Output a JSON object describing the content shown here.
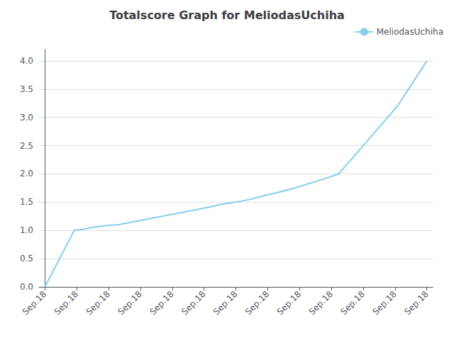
{
  "chart_data": {
    "type": "line",
    "title": "Totalscore Graph for MeliodasUchiha",
    "x": [
      0,
      0.5,
      1.0,
      1.3,
      1.6,
      2.0,
      2.5,
      3.0,
      3.5,
      4.0,
      4.5,
      5.0,
      5.5,
      6.0,
      6.5,
      7.0,
      7.5,
      8.0,
      8.5,
      9.0,
      9.5,
      10.0,
      10.5,
      11.0,
      11.5,
      12.0,
      12.5,
      13.0
    ],
    "series": [
      {
        "name": "MeliodasUchiha",
        "color": "#87CEEB",
        "values": [
          0.0,
          0.5,
          1.0,
          1.02,
          1.05,
          1.08,
          1.1,
          1.15,
          1.2,
          1.25,
          1.3,
          1.35,
          1.4,
          1.46,
          1.5,
          1.55,
          1.62,
          1.68,
          1.75,
          1.83,
          1.91,
          2.0,
          2.3,
          2.6,
          2.9,
          3.2,
          3.6,
          4.0
        ]
      }
    ],
    "xlim": [
      -0.2,
      13.2
    ],
    "xticks": [
      {
        "value": 0,
        "label": "Sep.18"
      },
      {
        "value": 1.0833333333333333,
        "label": "Sep.18"
      },
      {
        "value": 2.1666666666666665,
        "label": "Sep.18"
      },
      {
        "value": 3.25,
        "label": "Sep.18"
      },
      {
        "value": 4.333333333333333,
        "label": "Sep.18"
      },
      {
        "value": 5.416666666666667,
        "label": "Sep.18"
      },
      {
        "value": 6.5,
        "label": "Sep.18"
      },
      {
        "value": 7.583333333333333,
        "label": "Sep.18"
      },
      {
        "value": 8.666666666666666,
        "label": "Sep.18"
      },
      {
        "value": 9.75,
        "label": "Sep.18"
      },
      {
        "value": 10.833333333333334,
        "label": "Sep.18"
      },
      {
        "value": 11.916666666666666,
        "label": "Sep.18"
      },
      {
        "value": 13,
        "label": "Sep.18"
      }
    ],
    "ylim": [
      0.0,
      4.2
    ],
    "yticks": [
      {
        "value": 0.0,
        "label": "0.0"
      },
      0.5,
      {
        "value": 1.0,
        "label": "1.0"
      },
      1.5,
      {
        "value": 2.0,
        "label": "2.0"
      },
      2.5,
      {
        "value": 3.0,
        "label": "3.0"
      },
      3.5,
      {
        "value": 4.0,
        "label": "4.0"
      }
    ],
    "grid": true,
    "legend": "upper right"
  }
}
